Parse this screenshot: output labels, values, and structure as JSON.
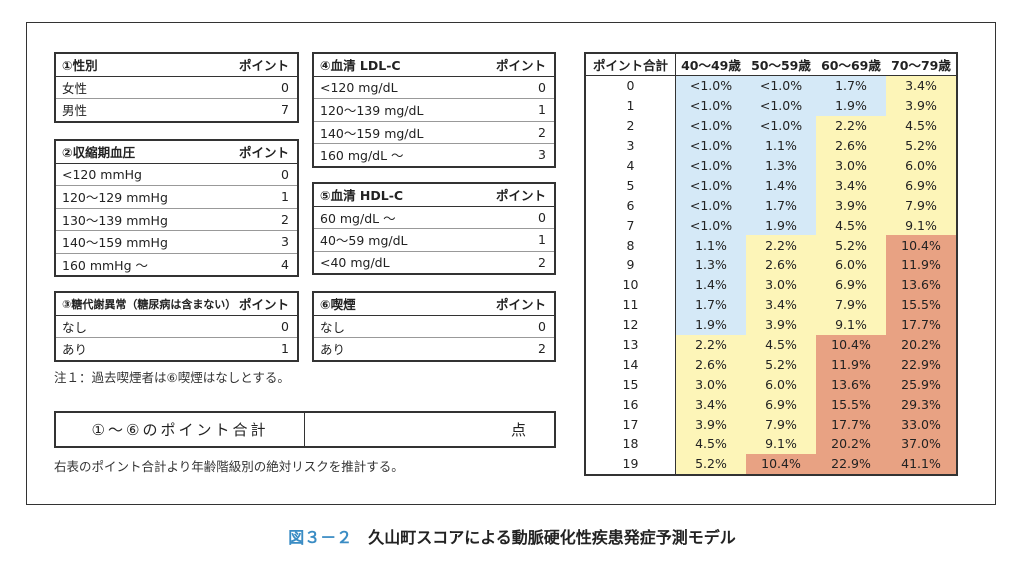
{
  "boxes": {
    "sex": {
      "title": "①性別",
      "points_label": "ポイント",
      "rows": [
        {
          "label": "女性",
          "value": "0"
        },
        {
          "label": "男性",
          "value": "7"
        }
      ]
    },
    "sbp": {
      "title": "②収縮期血圧",
      "points_label": "ポイント",
      "rows": [
        {
          "label": "<120 mmHg",
          "value": "0"
        },
        {
          "label": "120～129 mmHg",
          "value": "1"
        },
        {
          "label": "130～139 mmHg",
          "value": "2"
        },
        {
          "label": "140～159 mmHg",
          "value": "3"
        },
        {
          "label": "160 mmHg ～",
          "value": "4"
        }
      ]
    },
    "glucose": {
      "title": "③糖代謝異常（糖尿病は含まない）",
      "points_label": "ポイント",
      "rows": [
        {
          "label": "なし",
          "value": "0"
        },
        {
          "label": "あり",
          "value": "1"
        }
      ]
    },
    "ldl": {
      "title": "④血清 LDL-C",
      "points_label": "ポイント",
      "rows": [
        {
          "label": "<120 mg/dL",
          "value": "0"
        },
        {
          "label": "120～139 mg/dL",
          "value": "1"
        },
        {
          "label": "140～159 mg/dL",
          "value": "2"
        },
        {
          "label": "160 mg/dL ～",
          "value": "3"
        }
      ]
    },
    "hdl": {
      "title": "⑤血清 HDL-C",
      "points_label": "ポイント",
      "rows": [
        {
          "label": "60 mg/dL ～",
          "value": "0"
        },
        {
          "label": "40～59 mg/dL",
          "value": "1"
        },
        {
          "label": "<40 mg/dL",
          "value": "2"
        }
      ]
    },
    "smoking": {
      "title": "⑥喫煙",
      "points_label": "ポイント",
      "rows": [
        {
          "label": "なし",
          "value": "0"
        },
        {
          "label": "あり",
          "value": "2"
        }
      ]
    }
  },
  "note1": "注１：過去喫煙者は⑥喫煙はなしとする。",
  "sum": {
    "label": "①～⑥のポイント合計",
    "unit": "点"
  },
  "note2": "右表のポイント合計より年齢階級別の絶対リスクを推計する。",
  "risk_table": {
    "headers": [
      "ポイント合計",
      "40～49歳",
      "50～59歳",
      "60～69歳",
      "70～79歳"
    ],
    "rows": [
      [
        "0",
        "<1.0%",
        "<1.0%",
        "1.7%",
        "3.4%"
      ],
      [
        "1",
        "<1.0%",
        "<1.0%",
        "1.9%",
        "3.9%"
      ],
      [
        "2",
        "<1.0%",
        "<1.0%",
        "2.2%",
        "4.5%"
      ],
      [
        "3",
        "<1.0%",
        "1.1%",
        "2.6%",
        "5.2%"
      ],
      [
        "4",
        "<1.0%",
        "1.3%",
        "3.0%",
        "6.0%"
      ],
      [
        "5",
        "<1.0%",
        "1.4%",
        "3.4%",
        "6.9%"
      ],
      [
        "6",
        "<1.0%",
        "1.7%",
        "3.9%",
        "7.9%"
      ],
      [
        "7",
        "<1.0%",
        "1.9%",
        "4.5%",
        "9.1%"
      ],
      [
        "8",
        "1.1%",
        "2.2%",
        "5.2%",
        "10.4%"
      ],
      [
        "9",
        "1.3%",
        "2.6%",
        "6.0%",
        "11.9%"
      ],
      [
        "10",
        "1.4%",
        "3.0%",
        "6.9%",
        "13.6%"
      ],
      [
        "11",
        "1.7%",
        "3.4%",
        "7.9%",
        "15.5%"
      ],
      [
        "12",
        "1.9%",
        "3.9%",
        "9.1%",
        "17.7%"
      ],
      [
        "13",
        "2.2%",
        "4.5%",
        "10.4%",
        "20.2%"
      ],
      [
        "14",
        "2.6%",
        "5.2%",
        "11.9%",
        "22.9%"
      ],
      [
        "15",
        "3.0%",
        "6.0%",
        "13.6%",
        "25.9%"
      ],
      [
        "16",
        "3.4%",
        "6.9%",
        "15.5%",
        "29.3%"
      ],
      [
        "17",
        "3.9%",
        "7.9%",
        "17.7%",
        "33.0%"
      ],
      [
        "18",
        "4.5%",
        "9.1%",
        "20.2%",
        "37.0%"
      ],
      [
        "19",
        "5.2%",
        "10.4%",
        "22.9%",
        "41.1%"
      ]
    ],
    "colors": {
      "low": "#d5e9f7",
      "mid": "#fdf5b8",
      "high": "#e8a283"
    }
  },
  "caption": {
    "number": "図３－２",
    "title": "久山町スコアによる動脈硬化性疾患発症予測モデル"
  }
}
